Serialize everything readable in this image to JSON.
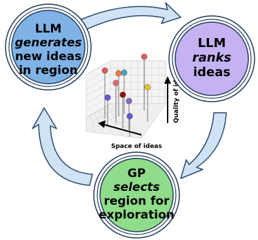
{
  "nodes": [
    {
      "id": "generate",
      "lines": [
        {
          "text": "LLM",
          "italic": false
        },
        {
          "text": "generates",
          "italic": true
        },
        {
          "text": "new ideas",
          "italic": false
        },
        {
          "text": "in region",
          "italic": false
        }
      ],
      "fill": "#7fb3e6",
      "ring": "#5a8fc7"
    },
    {
      "id": "rank",
      "lines": [
        {
          "text": "LLM",
          "italic": false
        },
        {
          "text": "ranks",
          "italic": true
        },
        {
          "text": "ideas",
          "italic": false
        }
      ],
      "fill": "#c4b2f2",
      "ring": "#9a86d6"
    },
    {
      "id": "select",
      "lines": [
        {
          "text": "GP",
          "italic": false
        },
        {
          "text": "selects",
          "italic": true
        },
        {
          "text": "region for",
          "italic": false
        },
        {
          "text": "exploration",
          "italic": false
        }
      ],
      "fill": "#8fdc8a",
      "ring": "#5fb95a"
    }
  ],
  "axes": {
    "x_label": "Space of ideas",
    "y_label": "Quality of idea"
  },
  "colors": {
    "arrow_fill": "#cfe3f5",
    "arrow_stroke": "#2b4a6e",
    "grid": "#c8c8c8"
  },
  "points": [
    {
      "color": "#e05a5a",
      "h": 0.7
    },
    {
      "color": "#e06a6a",
      "h": 0.58
    },
    {
      "color": "#f07a3c",
      "h": 0.62
    },
    {
      "color": "#4aa3c8",
      "h": 0.6
    },
    {
      "color": "#e25b5b",
      "h": 0.78
    },
    {
      "color": "#8a1010",
      "h": 0.48
    },
    {
      "color": "#6a55d8",
      "h": 0.4
    },
    {
      "color": "#8a66cc",
      "h": 0.42
    },
    {
      "color": "#f0c020",
      "h": 0.5
    },
    {
      "color": "#5a5ad8",
      "h": 0.3
    }
  ]
}
